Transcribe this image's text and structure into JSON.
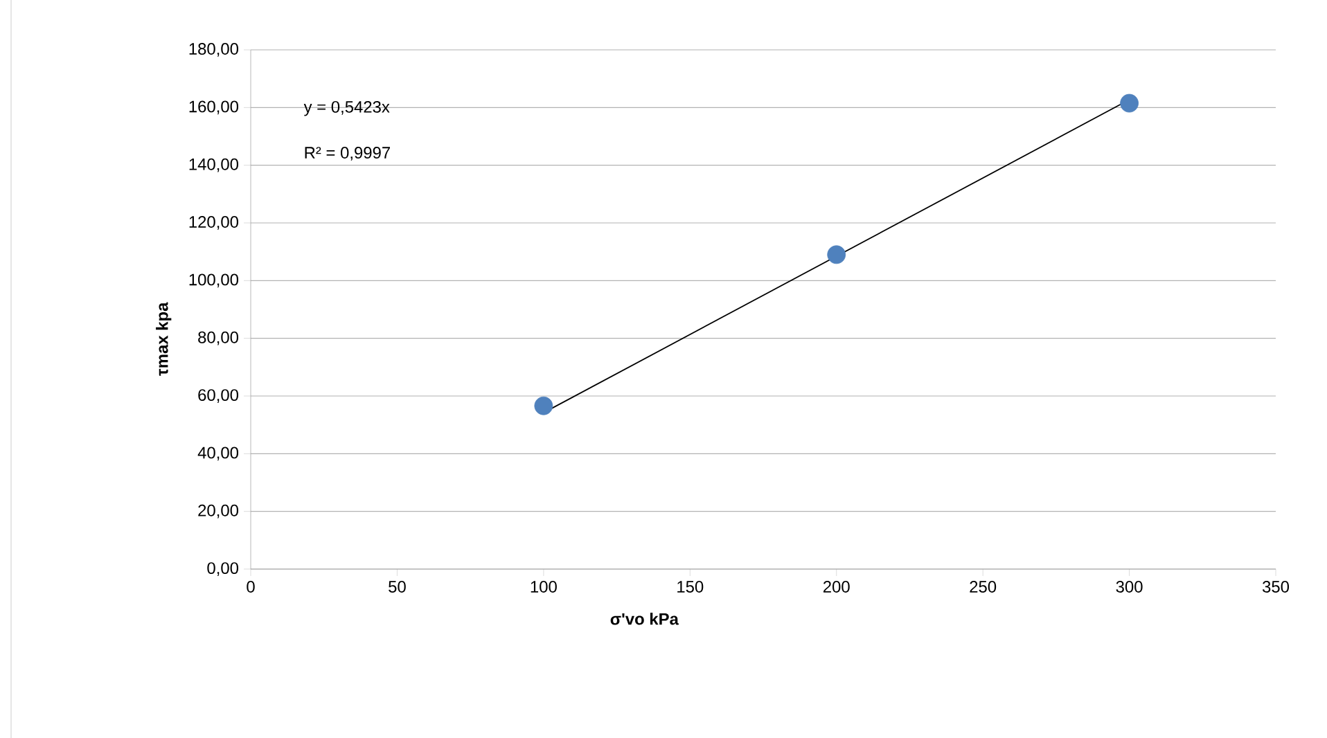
{
  "chart_data": {
    "type": "scatter",
    "xlabel": "σ'vo kPa",
    "ylabel": "τmax kpa",
    "series": [
      {
        "color": "#4f81bd",
        "marker": "circle",
        "x": [
          100,
          200,
          300
        ],
        "values": [
          56.6,
          109,
          161.5
        ]
      },
      {
        "type": "line",
        "color": "#000000",
        "marker": "none",
        "x": [
          100,
          300
        ],
        "values": [
          54.2,
          162.7
        ]
      }
    ],
    "annotations": [
      "y = 0,5423x",
      "R² = 0,9997"
    ],
    "xlim": [
      0,
      350
    ],
    "xticks": [
      0,
      50,
      100,
      150,
      200,
      250,
      300,
      350
    ],
    "ylim": [
      0,
      180
    ],
    "yticks": [
      {
        "value": 0,
        "label": "0,00"
      },
      {
        "value": 20,
        "label": "20,00"
      },
      {
        "value": 40,
        "label": "40,00"
      },
      {
        "value": 60,
        "label": "60,00"
      },
      {
        "value": 80,
        "label": "80,00"
      },
      {
        "value": 100,
        "label": "100,00"
      },
      {
        "value": 120,
        "label": "120,00"
      },
      {
        "value": 140,
        "label": "140,00"
      },
      {
        "value": 160,
        "label": "160,00"
      },
      {
        "value": 180,
        "label": "180,00"
      }
    ],
    "grid": "y"
  }
}
